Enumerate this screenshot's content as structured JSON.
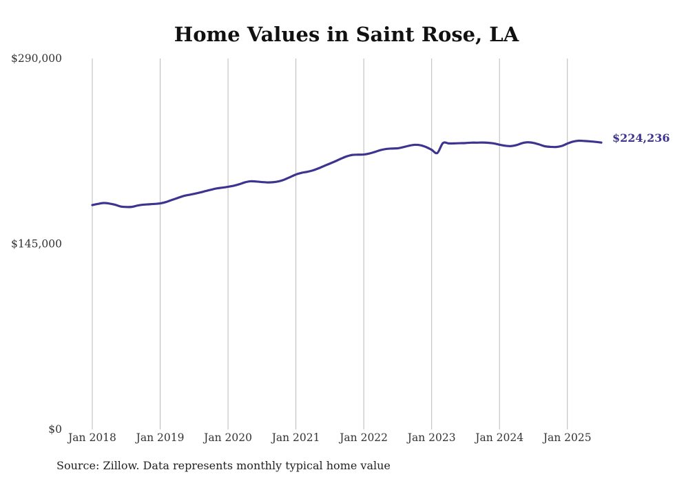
{
  "colors": {
    "line": "#3d3490",
    "grid": "#b8b8b8",
    "text": "#333333",
    "title": "#111111"
  },
  "chart_data": {
    "type": "line",
    "title": "Home Values in Saint Rose, LA",
    "xlabel": "",
    "ylabel": "",
    "x_ticks": [
      "Jan 2018",
      "Jan 2019",
      "Jan 2020",
      "Jan 2021",
      "Jan 2022",
      "Jan 2023",
      "Jan 2024",
      "Jan 2025"
    ],
    "y_ticks": [
      "$0",
      "$145,000",
      "$290,000"
    ],
    "ylim": [
      0,
      290000
    ],
    "xlim": [
      "2018-01",
      "2025-07"
    ],
    "grid": "vertical lines at each January",
    "end_label": "$224,236",
    "series": [
      {
        "x": [
          "2018-01",
          "2018-02",
          "2018-03",
          "2018-04",
          "2018-05",
          "2018-06",
          "2018-07",
          "2018-08",
          "2018-09",
          "2018-10",
          "2018-11",
          "2018-12",
          "2019-01",
          "2019-02",
          "2019-03",
          "2019-04",
          "2019-05",
          "2019-06",
          "2019-07",
          "2019-08",
          "2019-09",
          "2019-10",
          "2019-11",
          "2019-12",
          "2020-01",
          "2020-02",
          "2020-03",
          "2020-04",
          "2020-05",
          "2020-06",
          "2020-07",
          "2020-08",
          "2020-09",
          "2020-10",
          "2020-11",
          "2020-12",
          "2021-01",
          "2021-02",
          "2021-03",
          "2021-04",
          "2021-05",
          "2021-06",
          "2021-07",
          "2021-08",
          "2021-09",
          "2021-10",
          "2021-11",
          "2021-12",
          "2022-01",
          "2022-02",
          "2022-03",
          "2022-04",
          "2022-05",
          "2022-06",
          "2022-07",
          "2022-08",
          "2022-09",
          "2022-10",
          "2022-11",
          "2022-12",
          "2023-01",
          "2023-02",
          "2023-03",
          "2023-04",
          "2023-05",
          "2023-06",
          "2023-07",
          "2023-08",
          "2023-09",
          "2023-10",
          "2023-11",
          "2023-12",
          "2024-01",
          "2024-02",
          "2024-03",
          "2024-04",
          "2024-05",
          "2024-06",
          "2024-07",
          "2024-08",
          "2024-09",
          "2024-10",
          "2024-11",
          "2024-12",
          "2025-01",
          "2025-02",
          "2025-03",
          "2025-04",
          "2025-05",
          "2025-06",
          "2025-07"
        ],
        "values": [
          175400,
          176300,
          177000,
          176600,
          175700,
          174300,
          173900,
          174000,
          175000,
          175700,
          176000,
          176300,
          176700,
          177700,
          179300,
          180800,
          182300,
          183300,
          184200,
          185200,
          186300,
          187400,
          188400,
          189000,
          189700,
          190500,
          191700,
          193200,
          194000,
          193800,
          193400,
          193100,
          193300,
          194000,
          195400,
          197300,
          199300,
          200600,
          201400,
          202500,
          204100,
          206000,
          207800,
          209700,
          211700,
          213500,
          214600,
          214800,
          214900,
          215700,
          217000,
          218400,
          219300,
          219600,
          219800,
          220700,
          221800,
          222500,
          222200,
          220800,
          218600,
          216100,
          223900,
          223600,
          223600,
          223800,
          223900,
          224200,
          224200,
          224300,
          224100,
          223600,
          222600,
          221800,
          221500,
          222300,
          223800,
          224500,
          224000,
          222800,
          221400,
          220900,
          220800,
          221600,
          223500,
          225000,
          225700,
          225500,
          225200,
          224800,
          224236
        ]
      }
    ]
  },
  "footer": {
    "source": "Source: Zillow. Data represents monthly typical home value"
  }
}
